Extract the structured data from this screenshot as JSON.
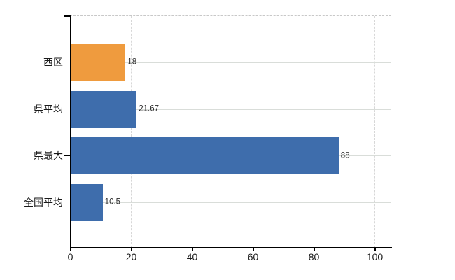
{
  "chart_data": {
    "type": "bar",
    "orientation": "horizontal",
    "title": "",
    "xlabel": "",
    "ylabel": "",
    "categories": [
      "西区",
      "県平均",
      "県最大",
      "全国平均"
    ],
    "values": [
      18,
      21.67,
      88,
      10.5
    ],
    "value_labels": [
      "18",
      "21.67",
      "88",
      "10.5"
    ],
    "bar_colors": [
      "#EF9B3E",
      "#3E6DAC",
      "#3E6DAC",
      "#3E6DAC"
    ],
    "highlight_color": "#EF9B3E",
    "default_bar_color": "#3E6DAC",
    "xlim": [
      0,
      105
    ],
    "x_ticks": [
      "0",
      "20",
      "40",
      "60",
      "80",
      "100"
    ],
    "x_tick_values": [
      0,
      20,
      40,
      60,
      80,
      100
    ],
    "grid": "on",
    "gridline_color": "#D7D7D7",
    "axis_color": "#000000",
    "text_color": "#1A1A1A",
    "background_color": "#FFFFFF",
    "legend": "none"
  }
}
